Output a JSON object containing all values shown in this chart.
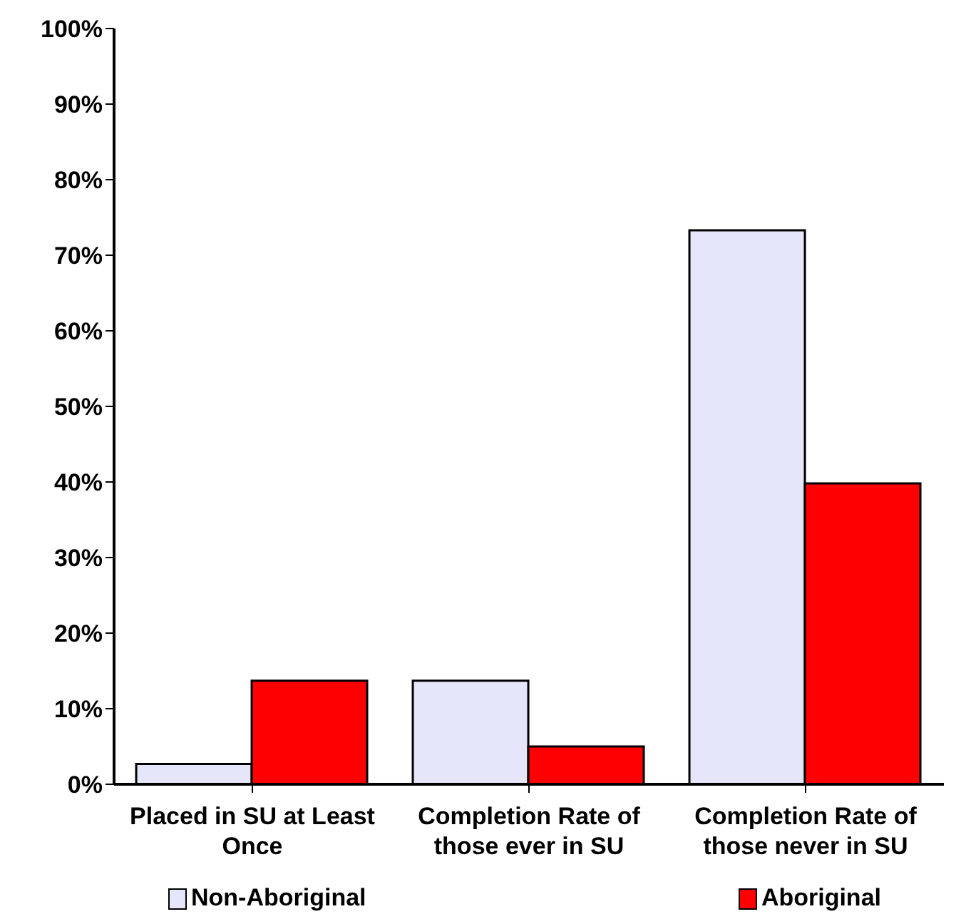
{
  "chart_data": {
    "type": "bar",
    "categories": [
      "Placed in SU at Least Once",
      "Completion Rate of those ever in SU",
      "Completion Rate of those never in SU"
    ],
    "series": [
      {
        "name": "Non-Aboriginal",
        "color": "#e6e6fa",
        "values": [
          2.7,
          13.7,
          73.3
        ]
      },
      {
        "name": "Aboriginal",
        "color": "#ff0000",
        "values": [
          13.7,
          5.0,
          39.8
        ]
      }
    ],
    "ylim": [
      0,
      100
    ],
    "yticks": [
      {
        "value": 0,
        "label": "0%"
      },
      {
        "value": 10,
        "label": "10%"
      },
      {
        "value": 20,
        "label": "20%"
      },
      {
        "value": 30,
        "label": "30%"
      },
      {
        "value": 40,
        "label": "40%"
      },
      {
        "value": 50,
        "label": "50%"
      },
      {
        "value": 60,
        "label": "60%"
      },
      {
        "value": 70,
        "label": "70%"
      },
      {
        "value": 80,
        "label": "80%"
      },
      {
        "value": 90,
        "label": "90%"
      },
      {
        "value": 100,
        "label": "100%"
      }
    ],
    "grid": false,
    "legend": "bottom"
  }
}
